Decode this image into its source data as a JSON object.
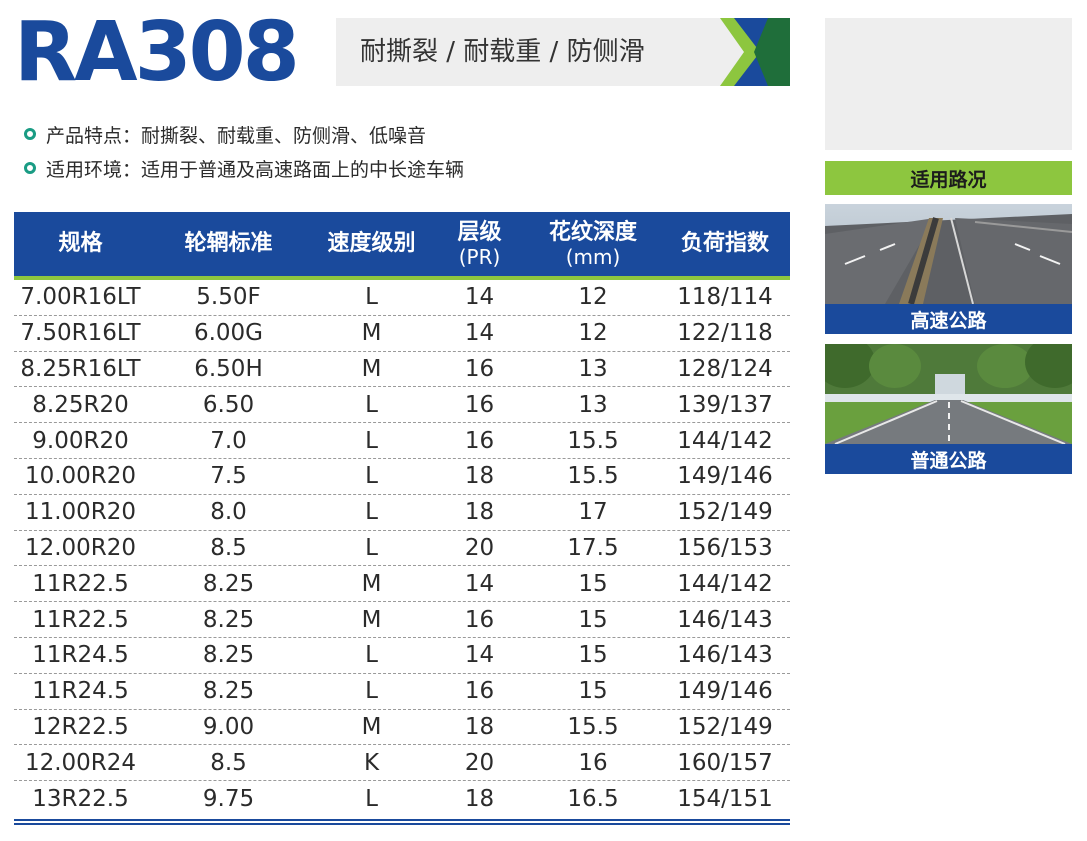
{
  "header": {
    "model": "RA308",
    "tagline": "耐撕裂 / 耐载重 / 防侧滑"
  },
  "features": [
    {
      "text": "产品特点：耐撕裂、耐载重、防侧滑、低噪音"
    },
    {
      "text": "适用环境：适用于普通及高速路面上的中长途车辆"
    }
  ],
  "table": {
    "headers": [
      {
        "label": "规格",
        "unit": ""
      },
      {
        "label": "轮辋标准",
        "unit": ""
      },
      {
        "label": "速度级别",
        "unit": ""
      },
      {
        "label": "层级",
        "unit": "(PR)"
      },
      {
        "label": "花纹深度",
        "unit": "(mm)"
      },
      {
        "label": "负荷指数",
        "unit": ""
      }
    ],
    "rows": [
      [
        "7.00R16LT",
        "5.50F",
        "L",
        "14",
        "12",
        "118/114"
      ],
      [
        "7.50R16LT",
        "6.00G",
        "M",
        "14",
        "12",
        "122/118"
      ],
      [
        "8.25R16LT",
        "6.50H",
        "M",
        "16",
        "13",
        "128/124"
      ],
      [
        "8.25R20",
        "6.50",
        "L",
        "16",
        "13",
        "139/137"
      ],
      [
        "9.00R20",
        "7.0",
        "L",
        "16",
        "15.5",
        "144/142"
      ],
      [
        "10.00R20",
        "7.5",
        "L",
        "18",
        "15.5",
        "149/146"
      ],
      [
        "11.00R20",
        "8.0",
        "L",
        "18",
        "17",
        "152/149"
      ],
      [
        "12.00R20",
        "8.5",
        "L",
        "20",
        "17.5",
        "156/153"
      ],
      [
        "11R22.5",
        "8.25",
        "M",
        "14",
        "15",
        "144/142"
      ],
      [
        "11R22.5",
        "8.25",
        "M",
        "16",
        "15",
        "146/143"
      ],
      [
        "11R24.5",
        "8.25",
        "L",
        "14",
        "15",
        "146/143"
      ],
      [
        "11R24.5",
        "8.25",
        "L",
        "16",
        "15",
        "149/146"
      ],
      [
        "12R22.5",
        "9.00",
        "M",
        "18",
        "15.5",
        "152/149"
      ],
      [
        "12.00R24",
        "8.5",
        "K",
        "20",
        "16",
        "160/157"
      ],
      [
        "13R22.5",
        "9.75",
        "L",
        "18",
        "16.5",
        "154/151"
      ]
    ]
  },
  "sidebar": {
    "heading": "适用路况",
    "roads": [
      {
        "caption": "高速公路"
      },
      {
        "caption": "普通公路"
      }
    ]
  },
  "colors": {
    "brand_blue": "#1a4a9c",
    "accent_green": "#8dc63f",
    "bullet_teal": "#1a9c84"
  }
}
